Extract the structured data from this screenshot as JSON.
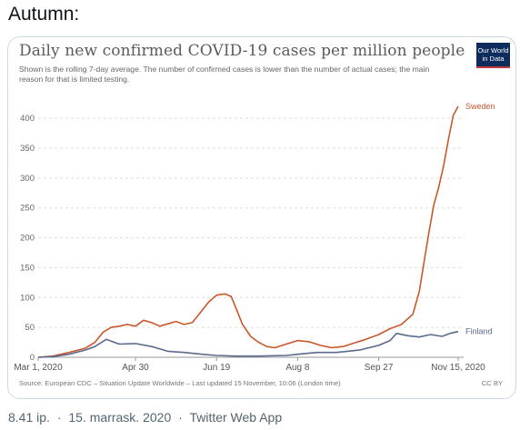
{
  "tweet": {
    "heading": "Autumn:",
    "meta": {
      "time": "8.41 ip.",
      "separator": "·",
      "date": "15. marrask. 2020",
      "source": "Twitter Web App"
    }
  },
  "card": {
    "logo_line1": "Our World",
    "logo_line2": "in Data",
    "source": "Source: European CDC – Situation Update Worldwide – Last updated 15 November, 10:06 (London time)",
    "license": "CC BY"
  },
  "colors": {
    "sweden": "#c9572c",
    "finland": "#5b6a8f",
    "grid": "#dddddd"
  },
  "chart_data": {
    "type": "line",
    "title": "Daily new confirmed COVID-19 cases per million people",
    "subtitle": "Shown is the rolling 7-day average. The number of confirmed cases is lower than the number of actual cases; the main reason for that is limited testing.",
    "xlim": [
      "2020-03-01",
      "2020-11-15"
    ],
    "ylim": [
      0,
      420
    ],
    "yticks": [
      0,
      50,
      100,
      150,
      200,
      250,
      300,
      350,
      400
    ],
    "xticks": [
      {
        "date": "2020-03-01",
        "label": "Mar 1, 2020"
      },
      {
        "date": "2020-04-30",
        "label": "Apr 30"
      },
      {
        "date": "2020-06-19",
        "label": "Jun 19"
      },
      {
        "date": "2020-08-08",
        "label": "Aug 8"
      },
      {
        "date": "2020-09-27",
        "label": "Sep 27"
      },
      {
        "date": "2020-11-15",
        "label": "Nov 15, 2020"
      }
    ],
    "grid": "horizontal dashed",
    "series": [
      {
        "name": "Sweden",
        "points": [
          [
            "2020-03-01",
            0
          ],
          [
            "2020-03-10",
            2
          ],
          [
            "2020-03-20",
            8
          ],
          [
            "2020-03-30",
            15
          ],
          [
            "2020-04-05",
            25
          ],
          [
            "2020-04-10",
            42
          ],
          [
            "2020-04-15",
            50
          ],
          [
            "2020-04-20",
            52
          ],
          [
            "2020-04-25",
            55
          ],
          [
            "2020-04-30",
            52
          ],
          [
            "2020-05-05",
            62
          ],
          [
            "2020-05-10",
            58
          ],
          [
            "2020-05-15",
            52
          ],
          [
            "2020-05-20",
            56
          ],
          [
            "2020-05-25",
            60
          ],
          [
            "2020-05-30",
            55
          ],
          [
            "2020-06-04",
            58
          ],
          [
            "2020-06-09",
            75
          ],
          [
            "2020-06-14",
            92
          ],
          [
            "2020-06-19",
            104
          ],
          [
            "2020-06-24",
            106
          ],
          [
            "2020-06-28",
            102
          ],
          [
            "2020-07-01",
            82
          ],
          [
            "2020-07-05",
            55
          ],
          [
            "2020-07-10",
            35
          ],
          [
            "2020-07-15",
            25
          ],
          [
            "2020-07-20",
            18
          ],
          [
            "2020-07-25",
            16
          ],
          [
            "2020-08-01",
            22
          ],
          [
            "2020-08-08",
            28
          ],
          [
            "2020-08-15",
            26
          ],
          [
            "2020-08-22",
            20
          ],
          [
            "2020-08-29",
            16
          ],
          [
            "2020-09-05",
            18
          ],
          [
            "2020-09-12",
            24
          ],
          [
            "2020-09-19",
            30
          ],
          [
            "2020-09-27",
            38
          ],
          [
            "2020-10-04",
            48
          ],
          [
            "2020-10-11",
            55
          ],
          [
            "2020-10-18",
            72
          ],
          [
            "2020-10-22",
            110
          ],
          [
            "2020-10-25",
            160
          ],
          [
            "2020-10-28",
            210
          ],
          [
            "2020-10-31",
            255
          ],
          [
            "2020-11-03",
            285
          ],
          [
            "2020-11-06",
            320
          ],
          [
            "2020-11-09",
            365
          ],
          [
            "2020-11-12",
            405
          ],
          [
            "2020-11-15",
            420
          ]
        ]
      },
      {
        "name": "Finland",
        "points": [
          [
            "2020-03-01",
            0
          ],
          [
            "2020-03-10",
            1
          ],
          [
            "2020-03-20",
            5
          ],
          [
            "2020-03-30",
            12
          ],
          [
            "2020-04-05",
            18
          ],
          [
            "2020-04-12",
            30
          ],
          [
            "2020-04-20",
            22
          ],
          [
            "2020-04-30",
            23
          ],
          [
            "2020-05-10",
            18
          ],
          [
            "2020-05-20",
            10
          ],
          [
            "2020-05-30",
            8
          ],
          [
            "2020-06-10",
            5
          ],
          [
            "2020-06-19",
            3
          ],
          [
            "2020-07-01",
            2
          ],
          [
            "2020-07-15",
            2
          ],
          [
            "2020-08-01",
            3
          ],
          [
            "2020-08-08",
            5
          ],
          [
            "2020-08-20",
            8
          ],
          [
            "2020-09-01",
            8
          ],
          [
            "2020-09-15",
            12
          ],
          [
            "2020-09-27",
            20
          ],
          [
            "2020-10-04",
            28
          ],
          [
            "2020-10-08",
            40
          ],
          [
            "2020-10-15",
            36
          ],
          [
            "2020-10-22",
            34
          ],
          [
            "2020-10-29",
            38
          ],
          [
            "2020-11-05",
            35
          ],
          [
            "2020-11-10",
            40
          ],
          [
            "2020-11-15",
            43
          ]
        ]
      }
    ]
  }
}
